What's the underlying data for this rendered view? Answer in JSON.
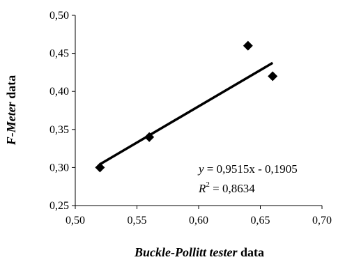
{
  "chart_data": {
    "type": "scatter",
    "title": "",
    "xlabel_italic": "Buckle-Pollitt tester",
    "xlabel_rest": " data",
    "ylabel_italic": "F-Meter",
    "ylabel_rest": " data",
    "xlim": [
      0.5,
      0.7
    ],
    "ylim": [
      0.25,
      0.5
    ],
    "x_ticks": [
      "0,50",
      "0,55",
      "0,60",
      "0,65",
      "0,70"
    ],
    "y_ticks": [
      "0,25",
      "0,30",
      "0,35",
      "0,40",
      "0,45",
      "0,50"
    ],
    "grid": false,
    "marker": "diamond",
    "points": [
      {
        "x": 0.52,
        "y": 0.3
      },
      {
        "x": 0.56,
        "y": 0.34
      },
      {
        "x": 0.64,
        "y": 0.46
      },
      {
        "x": 0.66,
        "y": 0.42
      }
    ],
    "trendline": {
      "slope": 0.9515,
      "intercept": -0.1905,
      "x_range": [
        0.52,
        0.66
      ],
      "equation_var": "y",
      "equation_rest": " = 0,9515x - 0,1905",
      "r2_var": "R",
      "r2_sup": "2",
      "r2_rest": " = 0,8634"
    },
    "colors": {
      "marker": "#000000",
      "line": "#000000",
      "axis": "#000000"
    }
  }
}
